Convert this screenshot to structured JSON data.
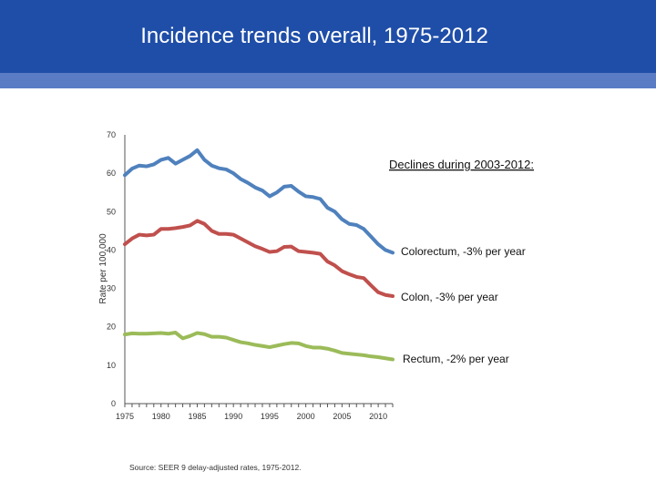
{
  "slide": {
    "title": "Incidence trends overall, 1975-2012",
    "colors": {
      "banner": "#1f4ea8",
      "stripe": "#5a7cc4"
    }
  },
  "chart_data": {
    "type": "line",
    "title": "",
    "xlabel": "",
    "ylabel": "Rate per 100,000",
    "xlim": [
      1975,
      2012
    ],
    "ylim": [
      0,
      70
    ],
    "x_ticks": [
      1975,
      1980,
      1985,
      1990,
      1995,
      2000,
      2005,
      2010
    ],
    "y_ticks": [
      0,
      10,
      20,
      30,
      40,
      50,
      60,
      70
    ],
    "grid": false,
    "x": [
      1975,
      1976,
      1977,
      1978,
      1979,
      1980,
      1981,
      1982,
      1983,
      1984,
      1985,
      1986,
      1987,
      1988,
      1989,
      1990,
      1991,
      1992,
      1993,
      1994,
      1995,
      1996,
      1997,
      1998,
      1999,
      2000,
      2001,
      2002,
      2003,
      2004,
      2005,
      2006,
      2007,
      2008,
      2009,
      2010,
      2011,
      2012
    ],
    "series": [
      {
        "name": "",
        "color": "#4f81bd",
        "values": [
          59.5,
          61.2,
          62.0,
          61.8,
          62.3,
          63.5,
          64.0,
          62.5,
          63.5,
          64.5,
          66.0,
          63.5,
          62.0,
          61.3,
          61.0,
          60.0,
          58.5,
          57.5,
          56.3,
          55.5,
          54.0,
          55.0,
          56.5,
          56.7,
          55.2,
          54.0,
          53.8,
          53.3,
          51.0,
          50.0,
          48.0,
          46.8,
          46.5,
          45.5,
          43.5,
          41.5,
          40.0,
          39.3
        ]
      },
      {
        "name": "",
        "color": "#c0504d",
        "values": [
          41.5,
          43.0,
          44.0,
          43.8,
          44.0,
          45.5,
          45.5,
          45.7,
          46.0,
          46.4,
          47.6,
          46.8,
          45.0,
          44.2,
          44.2,
          44.0,
          43.0,
          42.0,
          41.0,
          40.3,
          39.5,
          39.7,
          40.8,
          40.9,
          39.7,
          39.5,
          39.3,
          39.0,
          37.0,
          36.0,
          34.5,
          33.7,
          33.0,
          32.7,
          30.8,
          29.0,
          28.3,
          28.0
        ]
      },
      {
        "name": "",
        "color": "#9bbb59",
        "values": [
          18.0,
          18.3,
          18.2,
          18.2,
          18.3,
          18.4,
          18.2,
          18.5,
          17.0,
          17.6,
          18.4,
          18.1,
          17.4,
          17.4,
          17.2,
          16.6,
          16.0,
          15.7,
          15.3,
          15.0,
          14.7,
          15.1,
          15.5,
          15.8,
          15.7,
          15.0,
          14.6,
          14.6,
          14.3,
          13.8,
          13.2,
          13.0,
          12.8,
          12.6,
          12.3,
          12.1,
          11.8,
          11.5
        ]
      }
    ],
    "annotations": {
      "heading": "Declines during 2003-2012:",
      "colorectum": "Colorectum, -3% per year",
      "colon": "Colon, -3% per year",
      "rectum": "Rectum, -2% per year"
    },
    "source": "Source: SEER 9 delay-adjusted rates, 1975-2012."
  }
}
